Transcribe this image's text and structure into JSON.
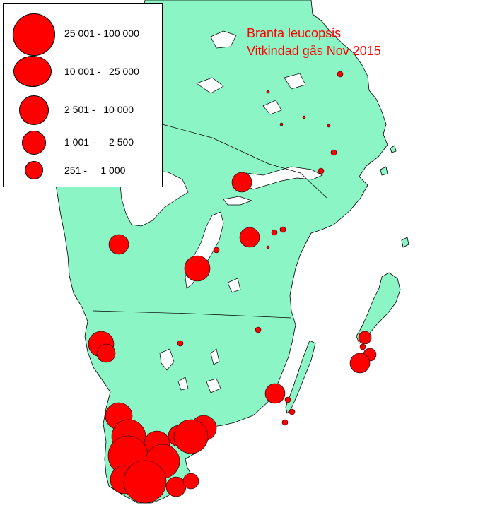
{
  "title": {
    "line1": "Branta leucopsis",
    "line2": "Vitkindad gås Nov 2015"
  },
  "legend": {
    "items": [
      {
        "label": "25 001 - 100 000"
      },
      {
        "label": "10 001 -   25 000"
      },
      {
        "label": "2 501 -   10 000"
      },
      {
        "label": "1 001 -     2 500"
      },
      {
        "label": "251 -     1 000"
      }
    ]
  },
  "colors": {
    "land": "#8cf5c5",
    "water": "#ffffff",
    "symbol": "#ff0000",
    "title": "#ff0000"
  }
}
